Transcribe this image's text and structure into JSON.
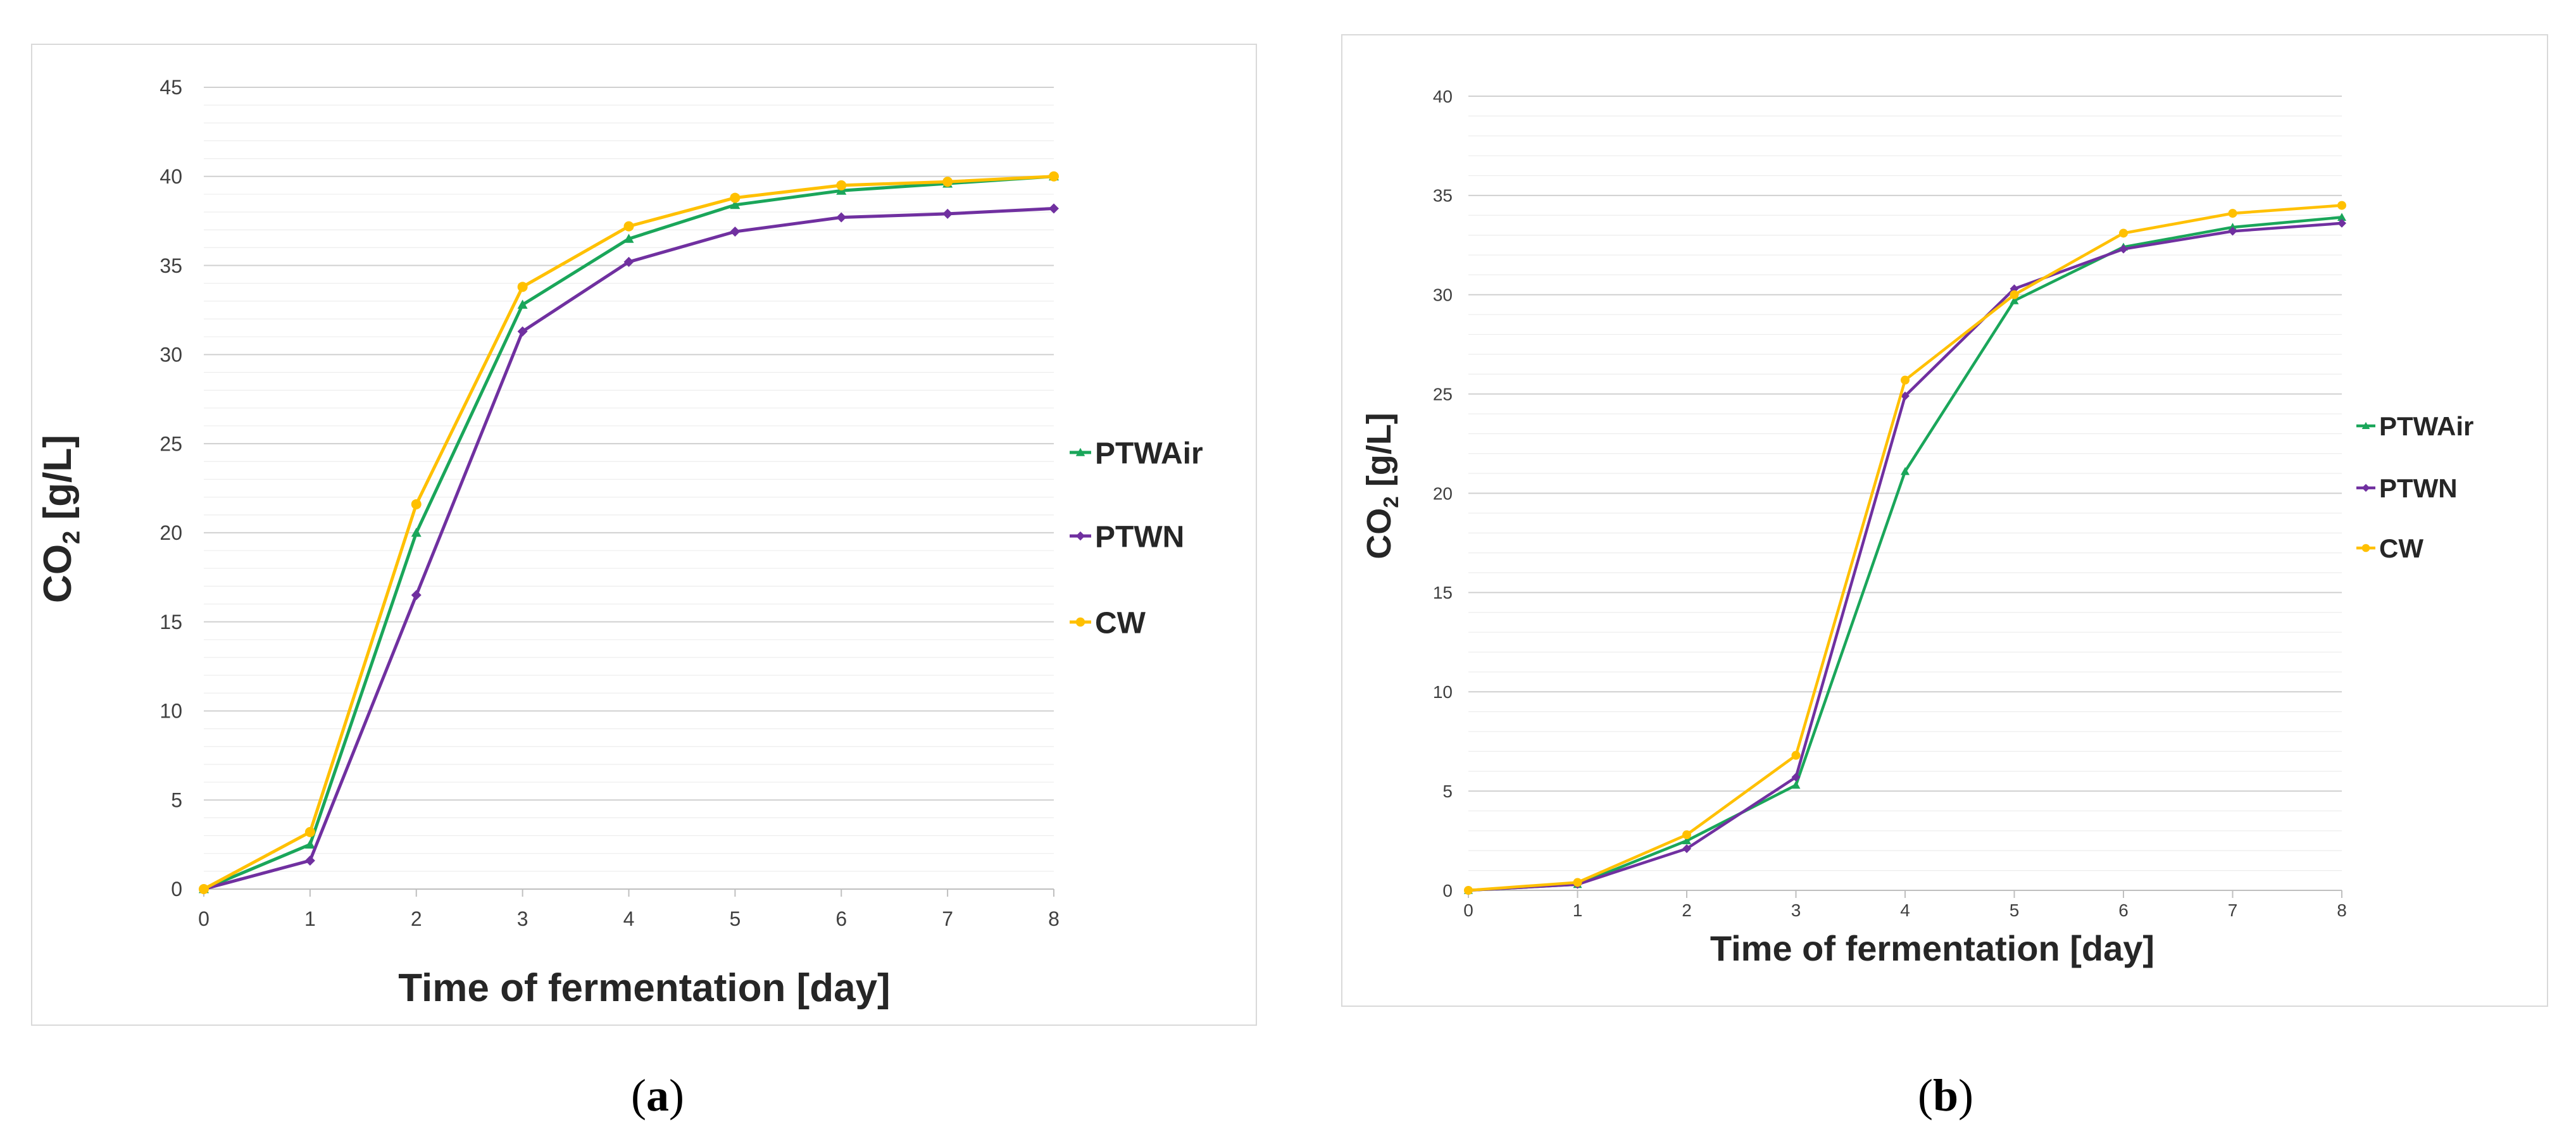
{
  "panels": [
    {
      "caption_open": "(",
      "caption_letter": "a",
      "caption_close": ")",
      "chart_data": {
        "type": "line",
        "title": "",
        "xlabel": "Time of fermentation [day]",
        "ylabel": "CO2 [g/L]",
        "xlim": [
          0,
          8
        ],
        "ylim": [
          0,
          45
        ],
        "x_ticks": [
          "0",
          "1",
          "2",
          "3",
          "4",
          "5",
          "6",
          "7",
          "8"
        ],
        "y_ticks": [
          "0",
          "5",
          "10",
          "15",
          "20",
          "25",
          "30",
          "35",
          "40",
          "45"
        ],
        "grid": true,
        "legend_position": "right",
        "series": [
          {
            "name": "PTWAir",
            "color": "#1aa65a",
            "marker": "triangle",
            "x": [
              0,
              1,
              2,
              3,
              4,
              5,
              6,
              7,
              8
            ],
            "y": [
              0,
              2.5,
              20,
              32.8,
              36.5,
              38.4,
              39.2,
              39.6,
              40.0
            ]
          },
          {
            "name": "PTWN",
            "color": "#7030a0",
            "marker": "diamond",
            "x": [
              0,
              1,
              2,
              3,
              4,
              5,
              6,
              7,
              8
            ],
            "y": [
              0,
              1.6,
              16.5,
              31.3,
              35.2,
              36.9,
              37.7,
              37.9,
              38.2
            ]
          },
          {
            "name": "CW",
            "color": "#ffc000",
            "marker": "circle",
            "x": [
              0,
              1,
              2,
              3,
              4,
              5,
              6,
              7,
              8
            ],
            "y": [
              0,
              3.2,
              21.6,
              33.8,
              37.2,
              38.8,
              39.5,
              39.7,
              40.0
            ]
          }
        ]
      }
    },
    {
      "caption_open": "(",
      "caption_letter": "b",
      "caption_close": ")",
      "chart_data": {
        "type": "line",
        "title": "",
        "xlabel": "Time of fermentation [day]",
        "ylabel": "CO2 [g/L]",
        "xlim": [
          0,
          8
        ],
        "ylim": [
          0,
          40
        ],
        "x_ticks": [
          "0",
          "1",
          "2",
          "3",
          "4",
          "5",
          "6",
          "7",
          "8"
        ],
        "y_ticks": [
          "0",
          "5",
          "10",
          "15",
          "20",
          "25",
          "30",
          "35",
          "40"
        ],
        "grid": true,
        "legend_position": "right",
        "series": [
          {
            "name": "PTWAir",
            "color": "#1aa65a",
            "marker": "triangle",
            "x": [
              0,
              1,
              2,
              3,
              4,
              5,
              6,
              7,
              8
            ],
            "y": [
              0,
              0.3,
              2.5,
              5.3,
              21.1,
              29.7,
              32.4,
              33.4,
              33.9
            ]
          },
          {
            "name": "PTWN",
            "color": "#7030a0",
            "marker": "diamond",
            "x": [
              0,
              1,
              2,
              3,
              4,
              5,
              6,
              7,
              8
            ],
            "y": [
              0,
              0.3,
              2.1,
              5.7,
              24.9,
              30.3,
              32.3,
              33.2,
              33.6
            ]
          },
          {
            "name": "CW",
            "color": "#ffc000",
            "marker": "circle",
            "x": [
              0,
              1,
              2,
              3,
              4,
              5,
              6,
              7,
              8
            ],
            "y": [
              0,
              0.4,
              2.8,
              6.8,
              25.7,
              30.0,
              33.1,
              34.1,
              34.5
            ]
          }
        ]
      }
    }
  ]
}
